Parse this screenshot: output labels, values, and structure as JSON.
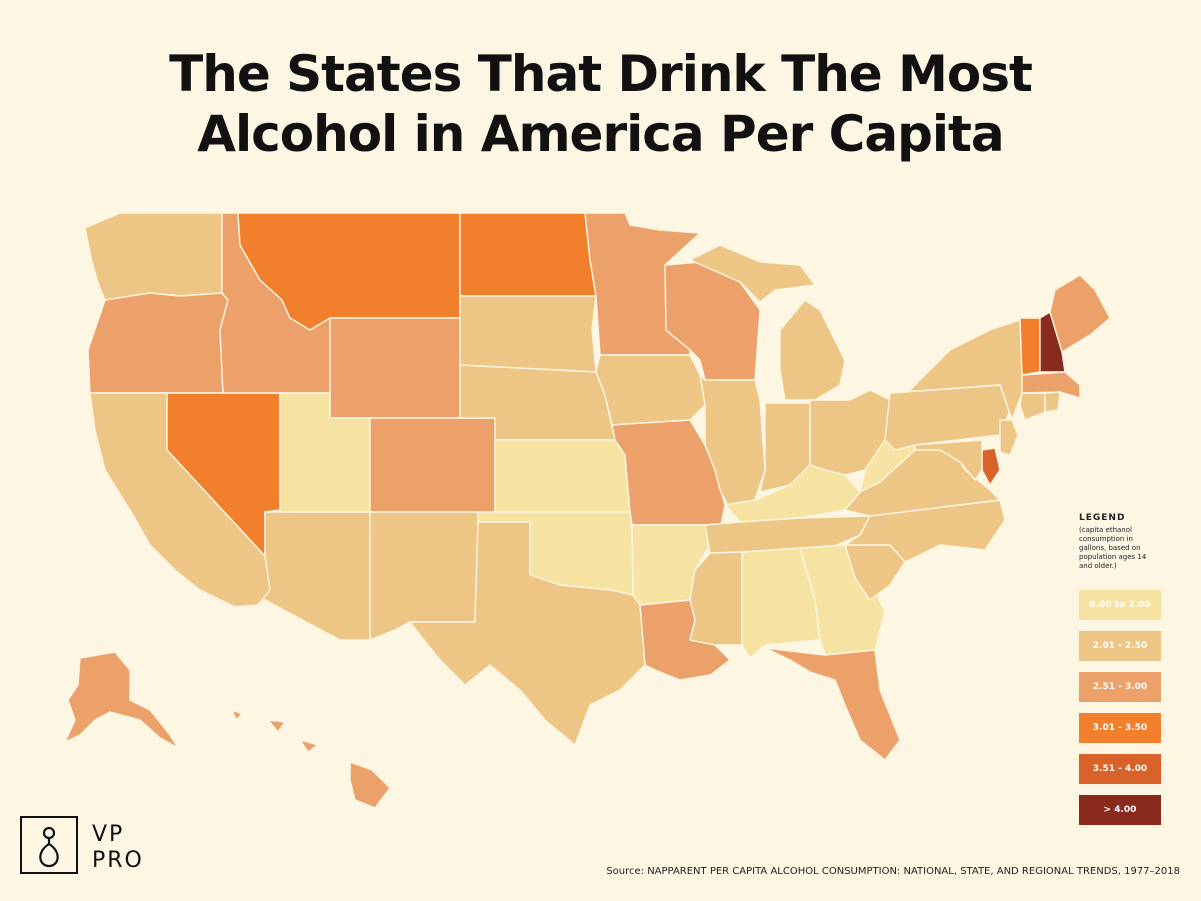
{
  "title_line1": "The States That Drink The Most",
  "title_line2": "Alcohol in America Per Capita",
  "legend": {
    "heading": "LEGEND",
    "note": "(capita ethanol consumption in gallons, based on population ages 14 and older.)",
    "bins": [
      {
        "label": "0.00 to 2.00",
        "color": "#f7e3a1"
      },
      {
        "label": "2.01 - 2.50",
        "color": "#edc584"
      },
      {
        "label": "2.51 - 3.00",
        "color": "#eda16a"
      },
      {
        "label": "3.01 - 3.50",
        "color": "#f27f2b"
      },
      {
        "label": "3.51 - 4.00",
        "color": "#d9622b"
      },
      {
        "label": "> 4.00",
        "color": "#8a2a1c"
      }
    ]
  },
  "state_bins": {
    "WA": 1,
    "OR": 2,
    "CA": 1,
    "NV": 3,
    "ID": 2,
    "MT": 3,
    "WY": 2,
    "UT": 0,
    "AZ": 1,
    "CO": 2,
    "NM": 1,
    "ND": 3,
    "SD": 1,
    "NE": 1,
    "KS": 0,
    "OK": 0,
    "TX": 1,
    "MN": 2,
    "IA": 1,
    "MO": 2,
    "AR": 0,
    "LA": 2,
    "WI": 2,
    "IL": 1,
    "MI": 1,
    "IN": 1,
    "OH": 1,
    "KY": 0,
    "TN": 1,
    "MS": 1,
    "AL": 0,
    "GA": 0,
    "FL": 2,
    "SC": 1,
    "NC": 1,
    "VA": 1,
    "WV": 0,
    "PA": 1,
    "NY": 1,
    "VT": 3,
    "NH": 5,
    "ME": 2,
    "MA": 2,
    "CT": 1,
    "RI": 1,
    "NJ": 1,
    "DE": 4,
    "MD": 1,
    "AK": 2,
    "HI": 2
  },
  "logo": {
    "line1": "VP",
    "line2": "PRO"
  },
  "source": "Source: NAPPARENT PER CAPITA ALCOHOL CONSUMPTION: NATIONAL, STATE, AND REGIONAL TRENDS, 1977–2018"
}
